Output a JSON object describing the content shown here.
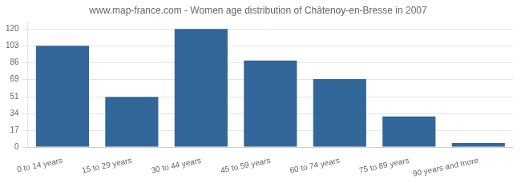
{
  "chart_data": {
    "type": "bar",
    "title": "www.map-france.com - Women age distribution of Châtenoy-en-Bresse in 2007",
    "categories": [
      "0 to 14 years",
      "15 to 29 years",
      "30 to 44 years",
      "45 to 59 years",
      "60 to 74 years",
      "75 to 89 years",
      "90 years and more"
    ],
    "values": [
      103,
      51,
      120,
      88,
      69,
      31,
      4
    ],
    "color": "#336699",
    "ylim": [
      0,
      128
    ],
    "yticks": [
      0,
      17,
      34,
      51,
      69,
      86,
      103,
      120
    ],
    "grid": true
  }
}
